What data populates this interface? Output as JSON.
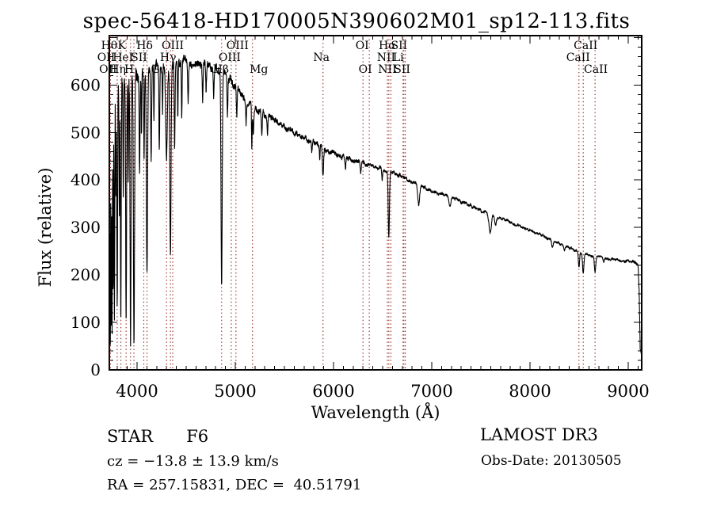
{
  "title": "spec-56418-HD170005N390602M01_sp12-113.fits",
  "annotations": {
    "object_type": "STAR",
    "subclass": "F6",
    "cz": "cz = −13.8 ± 13.9 km/s",
    "ra_dec": "RA = 257.15831, DEC =  40.51791",
    "survey": "LAMOST DR3",
    "obs_date": "Obs-Date: 20130505"
  },
  "colors": {
    "background": "#ffffff",
    "spectrum": "#000000",
    "frame": "#000000",
    "line_marker": "#993333",
    "text": "#000000"
  },
  "chart_data": {
    "type": "line",
    "title": "spec-56418-HD170005N390602M01_sp12-113.fits",
    "xlabel": "Wavelength (Å)",
    "ylabel": "Flux (relative)",
    "xlim": [
      3718,
      9137
    ],
    "ylim": [
      0,
      704
    ],
    "xticks": [
      4000,
      5000,
      6000,
      7000,
      8000,
      9000
    ],
    "yticks": [
      0,
      100,
      200,
      300,
      400,
      500,
      600
    ],
    "x_minor_step": 100,
    "y_minor_step": 20,
    "grid": false,
    "legend": "none",
    "spectral_lines": [
      {
        "label": "OII",
        "wavelength": 3726.0,
        "row": 2,
        "dx": -5
      },
      {
        "label": "OII",
        "wavelength": 3728.8,
        "row": 3,
        "dx": -3
      },
      {
        "label": "Hθ",
        "wavelength": 3798.0,
        "row": 1,
        "dx": -10
      },
      {
        "label": "Hη",
        "wavelength": 3835.4,
        "row": 3,
        "dx": -4
      },
      {
        "label": "HeI",
        "wavelength": 3889.0,
        "row": 2,
        "dx": -4
      },
      {
        "label": "K",
        "wavelength": 3933.7,
        "row": 1,
        "dx": -11
      },
      {
        "label": "H",
        "wavelength": 3968.5,
        "row": 3,
        "dx": -6
      },
      {
        "label": "SII",
        "wavelength": 4068.6,
        "row": 2,
        "dx": -6
      },
      {
        "label": "Hδ",
        "wavelength": 4101.7,
        "row": 1,
        "dx": -3
      },
      {
        "label": "G",
        "wavelength": 4300.0,
        "row": 3,
        "dx": -14
      },
      {
        "label": "Hγ",
        "wavelength": 4340.5,
        "row": 2,
        "dx": -3
      },
      {
        "label": "OIII",
        "wavelength": 4363.2,
        "row": 1,
        "dx": 0
      },
      {
        "label": "Hβ",
        "wavelength": 4861.3,
        "row": 3,
        "dx": -1
      },
      {
        "label": "OIII",
        "wavelength": 4958.9,
        "row": 2,
        "dx": -2
      },
      {
        "label": "OIII",
        "wavelength": 5006.8,
        "row": 1,
        "dx": 2
      },
      {
        "label": "Mg",
        "wavelength": 5175.3,
        "row": 3,
        "dx": 8
      },
      {
        "label": "Na",
        "wavelength": 5893.0,
        "row": 2,
        "dx": -2
      },
      {
        "label": "OI",
        "wavelength": 6300.2,
        "row": 1,
        "dx": -1
      },
      {
        "label": "OI",
        "wavelength": 6363.9,
        "row": 3,
        "dx": -5
      },
      {
        "label": "NII",
        "wavelength": 6548.1,
        "row": 3,
        "dx": 0
      },
      {
        "label": "Hα",
        "wavelength": 6562.8,
        "row": 1,
        "dx": -2
      },
      {
        "label": "NII",
        "wavelength": 6583.6,
        "row": 2,
        "dx": -6
      },
      {
        "label": "Li",
        "wavelength": 6707.9,
        "row": 2,
        "dx": -6
      },
      {
        "label": "SII",
        "wavelength": 6716.4,
        "row": 1,
        "dx": -6
      },
      {
        "label": "SII",
        "wavelength": 6730.8,
        "row": 3,
        "dx": -4
      },
      {
        "label": "CaII",
        "wavelength": 8498.0,
        "row": 2,
        "dx": -1
      },
      {
        "label": "CaII",
        "wavelength": 8542.1,
        "row": 1,
        "dx": 3
      },
      {
        "label": "CaII",
        "wavelength": 8662.1,
        "row": 3,
        "dx": 1
      }
    ],
    "continuum": [
      [
        3718,
        560
      ],
      [
        3760,
        600
      ],
      [
        3850,
        615
      ],
      [
        3950,
        620
      ],
      [
        4050,
        630
      ],
      [
        4200,
        640
      ],
      [
        4350,
        645
      ],
      [
        4500,
        648
      ],
      [
        4650,
        648
      ],
      [
        4750,
        640
      ],
      [
        4850,
        632
      ],
      [
        4950,
        610
      ],
      [
        5050,
        580
      ],
      [
        5150,
        560
      ],
      [
        5250,
        545
      ],
      [
        5435,
        522
      ],
      [
        5600,
        500
      ],
      [
        5790,
        480
      ],
      [
        5950,
        462
      ],
      [
        6150,
        445
      ],
      [
        6350,
        432
      ],
      [
        6508,
        422
      ],
      [
        6700,
        408
      ],
      [
        6863,
        389
      ],
      [
        7050,
        372
      ],
      [
        7218,
        362
      ],
      [
        7400,
        345
      ],
      [
        7581,
        328
      ],
      [
        7800,
        312
      ],
      [
        7935,
        300
      ],
      [
        8100,
        285
      ],
      [
        8290,
        267
      ],
      [
        8450,
        252
      ],
      [
        8645,
        240
      ],
      [
        8800,
        234
      ],
      [
        9008,
        229
      ],
      [
        9060,
        226
      ],
      [
        9100,
        222
      ],
      [
        9112,
        160
      ],
      [
        9122,
        40
      ],
      [
        9137,
        30
      ]
    ],
    "absorption_features": [
      [
        3700,
        0.95,
        3
      ],
      [
        3706,
        0.9,
        2.5
      ],
      [
        3712,
        0.96,
        3
      ],
      [
        3720,
        0.85,
        2.5
      ],
      [
        3728,
        0.95,
        3
      ],
      [
        3737,
        0.9,
        2.5
      ],
      [
        3746,
        0.85,
        3
      ],
      [
        3757,
        0.72,
        3
      ],
      [
        3770,
        0.8,
        3.5
      ],
      [
        3785,
        0.4,
        3
      ],
      [
        3798,
        0.8,
        4
      ],
      [
        3820,
        0.45,
        3.5
      ],
      [
        3835,
        0.85,
        4
      ],
      [
        3860,
        0.4,
        3.5
      ],
      [
        3889,
        0.85,
        4.5
      ],
      [
        3910,
        0.35,
        3
      ],
      [
        3934,
        0.92,
        5
      ],
      [
        3969,
        0.94,
        6
      ],
      [
        4026,
        0.32,
        4
      ],
      [
        4045,
        0.2,
        3
      ],
      [
        4072,
        0.28,
        4
      ],
      [
        4101,
        0.7,
        6
      ],
      [
        4144,
        0.28,
        4
      ],
      [
        4172,
        0.18,
        3
      ],
      [
        4227,
        0.3,
        4
      ],
      [
        4260,
        0.15,
        3
      ],
      [
        4300,
        0.3,
        8
      ],
      [
        4340,
        0.62,
        6
      ],
      [
        4383,
        0.28,
        4
      ],
      [
        4415,
        0.18,
        3
      ],
      [
        4455,
        0.18,
        3.5
      ],
      [
        4520,
        0.12,
        4
      ],
      [
        4668,
        0.12,
        4
      ],
      [
        4703,
        0.09,
        4
      ],
      [
        4780,
        0.09,
        4
      ],
      [
        4861,
        0.72,
        6
      ],
      [
        4920,
        0.14,
        4
      ],
      [
        5015,
        0.1,
        4
      ],
      [
        5110,
        0.08,
        4
      ],
      [
        5168,
        0.18,
        3
      ],
      [
        5183,
        0.1,
        6
      ],
      [
        5270,
        0.1,
        5
      ],
      [
        5328,
        0.07,
        4
      ],
      [
        5780,
        0.05,
        4
      ],
      [
        5860,
        0.06,
        3
      ],
      [
        5893,
        0.13,
        6
      ],
      [
        6122,
        0.05,
        4
      ],
      [
        6277,
        0.05,
        5
      ],
      [
        6495,
        0.05,
        4
      ],
      [
        6563,
        0.33,
        6
      ],
      [
        6867,
        0.1,
        9
      ],
      [
        7186,
        0.05,
        10
      ],
      [
        7594,
        0.12,
        12
      ],
      [
        7650,
        0.05,
        8
      ],
      [
        8227,
        0.05,
        8
      ],
      [
        8350,
        0.04,
        5
      ],
      [
        8498,
        0.13,
        6
      ],
      [
        8542,
        0.17,
        7
      ],
      [
        8662,
        0.14,
        7
      ],
      [
        8750,
        0.04,
        6
      ]
    ],
    "noise_profile": [
      [
        3718,
        55
      ],
      [
        3755,
        40
      ],
      [
        3800,
        26
      ],
      [
        3900,
        24
      ],
      [
        4000,
        22
      ],
      [
        4300,
        17
      ],
      [
        4600,
        13
      ],
      [
        5000,
        12
      ],
      [
        5400,
        9
      ],
      [
        5900,
        7.5
      ],
      [
        6300,
        6
      ],
      [
        6800,
        5
      ],
      [
        7400,
        4.5
      ],
      [
        8000,
        4
      ],
      [
        8700,
        3.5
      ],
      [
        9050,
        4
      ],
      [
        9137,
        6
      ]
    ]
  }
}
